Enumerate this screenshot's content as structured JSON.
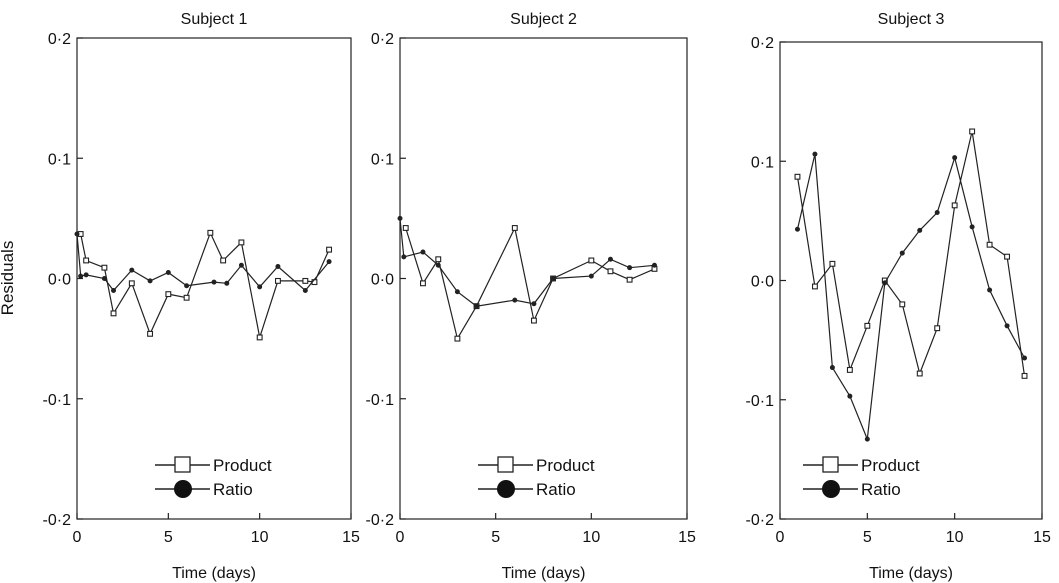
{
  "figure": {
    "y_axis_label": "Residuals",
    "legend": {
      "product_label": "Product",
      "ratio_label": "Ratio"
    }
  },
  "chart_data": [
    {
      "type": "line",
      "title": "Subject 1",
      "xlabel": "Time (days)",
      "ylabel": "Residuals",
      "xlim": [
        0,
        15
      ],
      "ylim": [
        -0.2,
        0.2
      ],
      "x_ticks": [
        "0",
        "5",
        "10",
        "15"
      ],
      "y_ticks": [
        "0·2",
        "0·1",
        "0·0",
        "-0·1",
        "-0·2"
      ],
      "series": [
        {
          "name": "Product",
          "marker": "open-square",
          "points": [
            [
              0.2,
              0.037
            ],
            [
              0.5,
              0.015
            ],
            [
              1.5,
              0.009
            ],
            [
              2,
              -0.029
            ],
            [
              3,
              -0.004
            ],
            [
              4,
              -0.046
            ],
            [
              5,
              -0.013
            ],
            [
              6,
              -0.016
            ],
            [
              7.3,
              0.038
            ],
            [
              8,
              0.015
            ],
            [
              9,
              0.03
            ],
            [
              10,
              -0.049
            ],
            [
              11,
              -0.002
            ],
            [
              12.5,
              -0.002
            ],
            [
              13,
              -0.003
            ],
            [
              13.8,
              0.024
            ]
          ]
        },
        {
          "name": "Ratio",
          "marker": "filled-circle",
          "points": [
            [
              0,
              0.037
            ],
            [
              0.2,
              0.002
            ],
            [
              0.5,
              0.003
            ],
            [
              1.5,
              0
            ],
            [
              2,
              -0.01
            ],
            [
              3,
              0.007
            ],
            [
              4,
              -0.002
            ],
            [
              5,
              0.005
            ],
            [
              6,
              -0.006
            ],
            [
              7.5,
              -0.003
            ],
            [
              8.2,
              -0.004
            ],
            [
              9,
              0.011
            ],
            [
              10,
              -0.007
            ],
            [
              11,
              0.01
            ],
            [
              12.5,
              -0.01
            ],
            [
              13.8,
              0.014
            ]
          ]
        }
      ]
    },
    {
      "type": "line",
      "title": "Subject 2",
      "xlabel": "Time (days)",
      "ylabel": "",
      "xlim": [
        0,
        15
      ],
      "ylim": [
        -0.2,
        0.2
      ],
      "x_ticks": [
        "0",
        "5",
        "10",
        "15"
      ],
      "y_ticks": [
        "0·2",
        "0·1",
        "0·0",
        "-0·1",
        "-0·2"
      ],
      "series": [
        {
          "name": "Product",
          "marker": "open-square",
          "points": [
            [
              0.3,
              0.042
            ],
            [
              1.2,
              -0.004
            ],
            [
              2,
              0.016
            ],
            [
              3,
              -0.05
            ],
            [
              4,
              -0.023
            ],
            [
              6,
              0.042
            ],
            [
              7,
              -0.035
            ],
            [
              8,
              0
            ],
            [
              10,
              0.015
            ],
            [
              11,
              0.006
            ],
            [
              12,
              -0.001
            ],
            [
              13.3,
              0.008
            ]
          ]
        },
        {
          "name": "Ratio",
          "marker": "filled-circle",
          "points": [
            [
              0,
              0.05
            ],
            [
              0.2,
              0.018
            ],
            [
              1.2,
              0.022
            ],
            [
              2,
              0.011
            ],
            [
              3,
              -0.011
            ],
            [
              4,
              -0.023
            ],
            [
              6,
              -0.018
            ],
            [
              7,
              -0.021
            ],
            [
              8,
              0
            ],
            [
              10,
              0.002
            ],
            [
              11,
              0.016
            ],
            [
              12,
              0.009
            ],
            [
              13.3,
              0.011
            ]
          ]
        }
      ]
    },
    {
      "type": "line",
      "title": "Subject 3",
      "xlabel": "Time (days)",
      "ylabel": "",
      "xlim": [
        0,
        15
      ],
      "ylim": [
        -0.2,
        0.2
      ],
      "x_ticks": [
        "0",
        "5",
        "10",
        "15"
      ],
      "y_ticks": [
        "0·2",
        "0·1",
        "0·0",
        "-0·1",
        "-0·2"
      ],
      "series": [
        {
          "name": "Product",
          "marker": "open-square",
          "points": [
            [
              1,
              0.087
            ],
            [
              2,
              -0.005
            ],
            [
              3,
              0.014
            ],
            [
              4,
              -0.075
            ],
            [
              5,
              -0.038
            ],
            [
              6,
              0
            ],
            [
              7,
              -0.02
            ],
            [
              8,
              -0.078
            ],
            [
              9,
              -0.04
            ],
            [
              10,
              0.063
            ],
            [
              11,
              0.125
            ],
            [
              12,
              0.03
            ],
            [
              13,
              0.02
            ],
            [
              14,
              -0.08
            ]
          ]
        },
        {
          "name": "Ratio",
          "marker": "filled-circle",
          "points": [
            [
              1,
              0.043
            ],
            [
              2,
              0.106
            ],
            [
              3,
              -0.073
            ],
            [
              4,
              -0.097
            ],
            [
              5,
              -0.133
            ],
            [
              6,
              -0.002
            ],
            [
              7,
              0.023
            ],
            [
              8,
              0.042
            ],
            [
              9,
              0.057
            ],
            [
              10,
              0.103
            ],
            [
              11,
              0.045
            ],
            [
              12,
              -0.008
            ],
            [
              13,
              -0.038
            ],
            [
              14,
              -0.065
            ]
          ]
        }
      ]
    }
  ]
}
